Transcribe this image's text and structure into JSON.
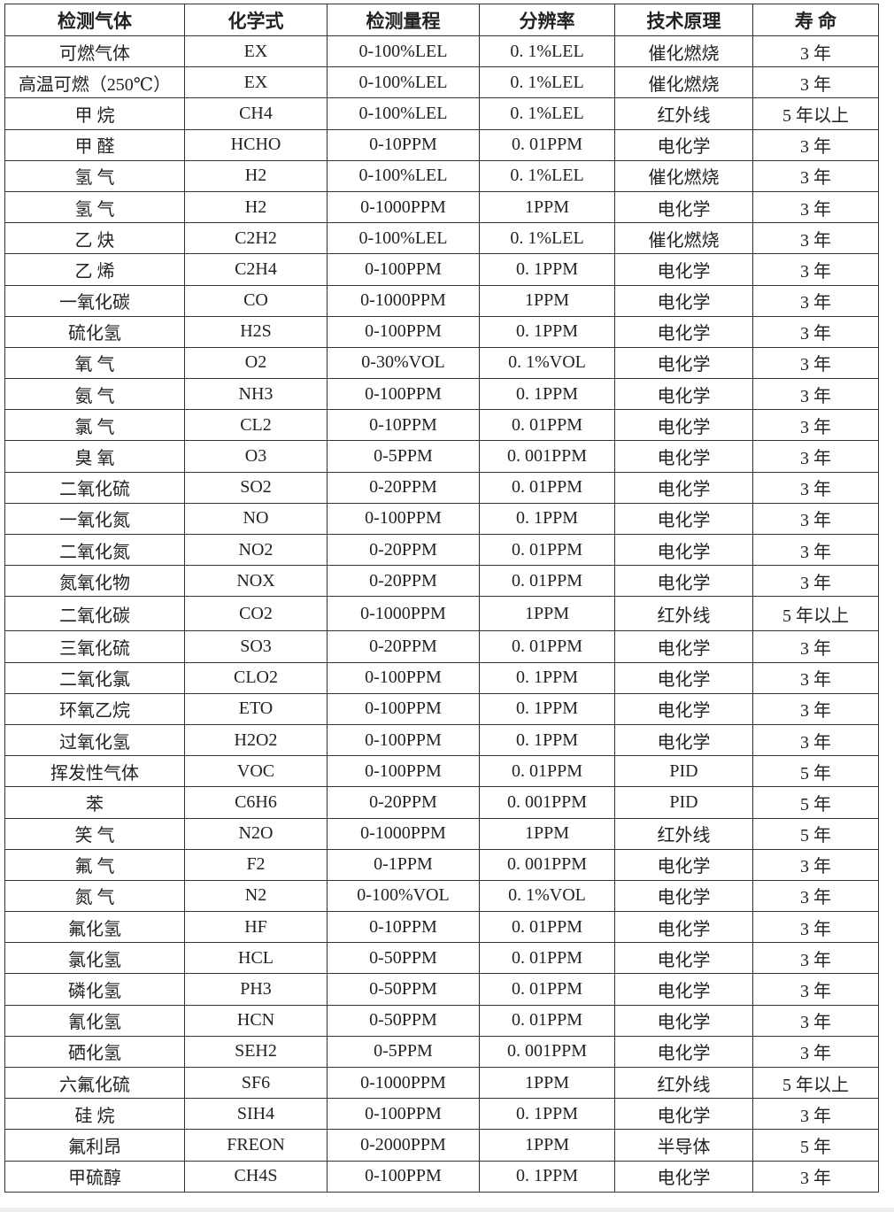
{
  "table": {
    "headers": [
      "检测气体",
      "化学式",
      "检测量程",
      "分辨率",
      "技术原理",
      "寿 命"
    ],
    "rows": [
      [
        "可燃气体",
        "EX",
        "0-100%LEL",
        "0. 1%LEL",
        "催化燃烧",
        "3 年"
      ],
      [
        "高温可燃（250℃）",
        "EX",
        "0-100%LEL",
        "0. 1%LEL",
        "催化燃烧",
        "3 年"
      ],
      [
        "甲 烷",
        "CH4",
        "0-100%LEL",
        "0. 1%LEL",
        "红外线",
        "5 年以上"
      ],
      [
        "甲 醛",
        "HCHO",
        "0-10PPM",
        "0. 01PPM",
        "电化学",
        "3 年"
      ],
      [
        "氢 气",
        "H2",
        "0-100%LEL",
        "0. 1%LEL",
        "催化燃烧",
        "3 年"
      ],
      [
        "氢 气",
        "H2",
        "0-1000PPM",
        "1PPM",
        "电化学",
        "3 年"
      ],
      [
        "乙 炔",
        "C2H2",
        "0-100%LEL",
        "0. 1%LEL",
        "催化燃烧",
        "3 年"
      ],
      [
        "乙 烯",
        "C2H4",
        "0-100PPM",
        "0. 1PPM",
        "电化学",
        "3 年"
      ],
      [
        "一氧化碳",
        "CO",
        "0-1000PPM",
        "1PPM",
        "电化学",
        "3 年"
      ],
      [
        "硫化氢",
        "H2S",
        "0-100PPM",
        "0. 1PPM",
        "电化学",
        "3 年"
      ],
      [
        "氧 气",
        "O2",
        "0-30%VOL",
        "0. 1%VOL",
        "电化学",
        "3 年"
      ],
      [
        "氨 气",
        "NH3",
        "0-100PPM",
        "0. 1PPM",
        "电化学",
        "3 年"
      ],
      [
        "氯 气",
        "CL2",
        "0-10PPM",
        "0. 01PPM",
        "电化学",
        "3 年"
      ],
      [
        "臭 氧",
        "O3",
        "0-5PPM",
        "0. 001PPM",
        "电化学",
        "3 年"
      ],
      [
        "二氧化硫",
        "SO2",
        "0-20PPM",
        "0. 01PPM",
        "电化学",
        "3 年"
      ],
      [
        "一氧化氮",
        "NO",
        "0-100PPM",
        "0. 1PPM",
        "电化学",
        "3 年"
      ],
      [
        "二氧化氮",
        "NO2",
        "0-20PPM",
        "0. 01PPM",
        "电化学",
        "3 年"
      ],
      [
        "氮氧化物",
        "NOX",
        "0-20PPM",
        "0. 01PPM",
        "电化学",
        "3 年"
      ],
      [
        "二氧化碳",
        "CO2",
        "0-1000PPM",
        "1PPM",
        "红外线",
        "5 年以上"
      ],
      [
        "三氧化硫",
        "SO3",
        "0-20PPM",
        "0. 01PPM",
        "电化学",
        "3 年"
      ],
      [
        "二氧化氯",
        "CLO2",
        "0-100PPM",
        "0. 1PPM",
        "电化学",
        "3 年"
      ],
      [
        "环氧乙烷",
        "ETO",
        "0-100PPM",
        "0. 1PPM",
        "电化学",
        "3 年"
      ],
      [
        "过氧化氢",
        "H2O2",
        "0-100PPM",
        "0. 1PPM",
        "电化学",
        "3 年"
      ],
      [
        "挥发性气体",
        "VOC",
        "0-100PPM",
        "0. 01PPM",
        "PID",
        "5 年"
      ],
      [
        "苯",
        "C6H6",
        "0-20PPM",
        "0. 001PPM",
        "PID",
        "5 年"
      ],
      [
        "笑 气",
        "N2O",
        "0-1000PPM",
        "1PPM",
        "红外线",
        "5 年"
      ],
      [
        "氟 气",
        "F2",
        "0-1PPM",
        "0. 001PPM",
        "电化学",
        "3 年"
      ],
      [
        "氮 气",
        "N2",
        "0-100%VOL",
        "0. 1%VOL",
        "电化学",
        "3 年"
      ],
      [
        "氟化氢",
        "HF",
        "0-10PPM",
        "0. 01PPM",
        "电化学",
        "3 年"
      ],
      [
        "氯化氢",
        "HCL",
        "0-50PPM",
        "0. 01PPM",
        "电化学",
        "3 年"
      ],
      [
        "磷化氢",
        "PH3",
        "0-50PPM",
        "0. 01PPM",
        "电化学",
        "3 年"
      ],
      [
        "氰化氢",
        "HCN",
        "0-50PPM",
        "0. 01PPM",
        "电化学",
        "3 年"
      ],
      [
        "硒化氢",
        "SEH2",
        "0-5PPM",
        "0. 001PPM",
        "电化学",
        "3 年"
      ],
      [
        "六氟化硫",
        "SF6",
        "0-1000PPM",
        "1PPM",
        "红外线",
        "5 年以上"
      ],
      [
        "硅 烷",
        "SIH4",
        "0-100PPM",
        "0. 1PPM",
        "电化学",
        "3 年"
      ],
      [
        "氟利昂",
        "FREON",
        "0-2000PPM",
        "1PPM",
        "半导体",
        "5 年"
      ],
      [
        "甲硫醇",
        "CH4S",
        "0-100PPM",
        "0. 1PPM",
        "电化学",
        "3 年"
      ]
    ]
  }
}
